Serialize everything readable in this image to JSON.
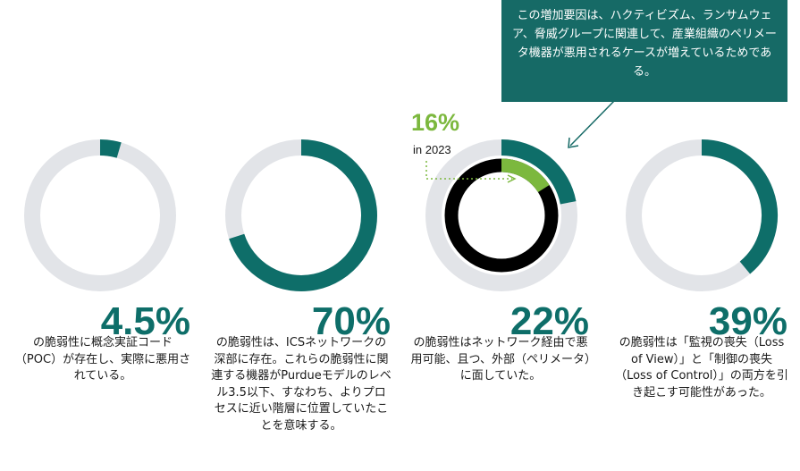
{
  "chart_data": {
    "type": "donut",
    "colors": {
      "track": "#e2e4e8",
      "value": "#0e6e69",
      "highlight": "#7cb83e",
      "overlay": "#000000"
    },
    "items": [
      {
        "value": 4.5,
        "value_label": "4.5%",
        "description": "の脆弱性に概念実証コード（POC）が存在し、実際に悪用されている。"
      },
      {
        "value": 70,
        "value_label": "70%",
        "description": "の脆弱性は、ICSネットワークの深部に存在。これらの脆弱性に関連する機器がPurdueモデルのレベル3.5以下、すなわち、よりプロセスに近い階層に位置していたことを意味する。"
      },
      {
        "value": 22,
        "value_label": "22%",
        "description": "の脆弱性はネットワーク経由で悪用可能、且つ、外部（ペリメータ）に面していた。",
        "highlight": {
          "value": 16,
          "value_label": "16%",
          "period": "in 2023"
        }
      },
      {
        "value": 39,
        "value_label": "39%",
        "description": "の脆弱性は「監視の喪失（Loss of View）」と「制御の喪失（Loss of Control）」の両方を引き起こす可能性があった。"
      }
    ],
    "callout": "この増加要因は、ハクティビズム、ランサムウェア、脅威グループに関連して、産業組織のペリメータ機器が悪用されるケースが増えているためである。"
  }
}
